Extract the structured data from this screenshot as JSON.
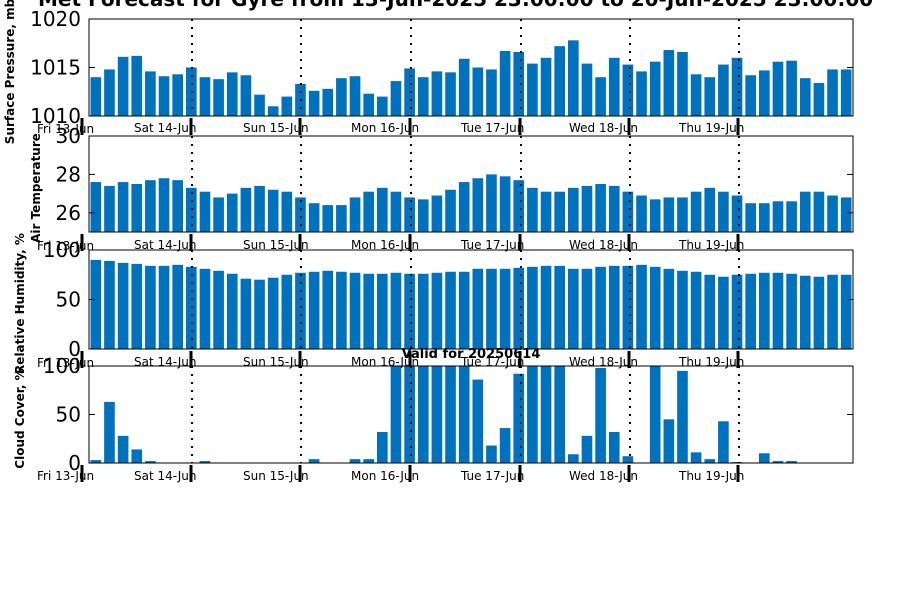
{
  "title": "Met Forecast for Gyre from 13-Jun-2025 23:00:00 to 20-Jun-2025 23:00:00",
  "subtitle": "Valid for 20250614",
  "colors": {
    "bar": "#0072bd",
    "axis": "#000000",
    "background": "#ffffff"
  },
  "chart_data": [
    {
      "type": "bar",
      "ylabel": "Surface Pressure, mb",
      "ylim": [
        1010,
        1020
      ],
      "yticks": [
        "1010",
        "1015",
        "1020"
      ],
      "xlabels": [
        "Fri 13-Jun",
        "Sat 14-Jun",
        "Sun 15-Jun",
        "Mon 16-Jun",
        "Tue 17-Jun",
        "Wed 18-Jun",
        "Thu 19-Jun"
      ],
      "grid": "dotted vertical at day boundaries",
      "values": [
        1014.0,
        1014.8,
        1016.1,
        1016.2,
        1014.6,
        1014.1,
        1014.3,
        1015.0,
        1014.0,
        1013.8,
        1014.5,
        1014.2,
        1012.2,
        1011.0,
        1012.0,
        1013.3,
        1012.6,
        1012.8,
        1013.9,
        1014.1,
        1012.3,
        1012.0,
        1013.6,
        1014.9,
        1014.0,
        1014.6,
        1014.5,
        1015.9,
        1015.0,
        1014.8,
        1016.7,
        1016.6,
        1015.4,
        1016.0,
        1017.2,
        1017.8,
        1015.4,
        1014.0,
        1016.0,
        1015.3,
        1014.6,
        1015.6,
        1016.8,
        1016.6,
        1014.3,
        1014.0,
        1015.3,
        1016.0,
        1014.2,
        1014.7,
        1015.6,
        1015.7,
        1013.9,
        1013.4,
        1014.8,
        1014.8
      ]
    },
    {
      "type": "bar",
      "ylabel": "Air Temperature",
      "ylim": [
        25,
        30
      ],
      "yticks": [
        "26",
        "28",
        "30"
      ],
      "ytickvalues": [
        26,
        28,
        30
      ],
      "xlabels": [
        "Fri 13-Jun",
        "Sat 14-Jun",
        "Sun 15-Jun",
        "Mon 16-Jun",
        "Tue 17-Jun",
        "Wed 18-Jun",
        "Thu 19-Jun"
      ],
      "grid": "dotted vertical at day boundaries",
      "values": [
        27.6,
        27.4,
        27.6,
        27.5,
        27.7,
        27.8,
        27.7,
        27.3,
        27.1,
        26.8,
        27.0,
        27.3,
        27.4,
        27.2,
        27.1,
        26.8,
        26.5,
        26.4,
        26.4,
        26.8,
        27.1,
        27.3,
        27.1,
        26.8,
        26.7,
        26.9,
        27.2,
        27.6,
        27.8,
        28.0,
        27.9,
        27.7,
        27.3,
        27.1,
        27.1,
        27.3,
        27.4,
        27.5,
        27.4,
        27.1,
        26.9,
        26.7,
        26.8,
        26.8,
        27.1,
        27.3,
        27.1,
        26.9,
        26.5,
        26.5,
        26.6,
        26.6,
        27.1,
        27.1,
        26.9,
        26.8
      ]
    },
    {
      "type": "bar",
      "ylabel": "Relative Humidity, %",
      "ylim": [
        0,
        100
      ],
      "yticks": [
        "0",
        "50",
        "100"
      ],
      "xlabels": [
        "Fri 13-Jun",
        "Sat 14-Jun",
        "Sun 15-Jun",
        "Mon 16-Jun",
        "Tue 17-Jun",
        "Wed 18-Jun",
        "Thu 19-Jun"
      ],
      "grid": "dotted vertical at day boundaries",
      "values": [
        90,
        89,
        87,
        86,
        84,
        84,
        85,
        83,
        81,
        79,
        76,
        71,
        70,
        72,
        75,
        77,
        78,
        79,
        78,
        77,
        76,
        76,
        77,
        76,
        76,
        77,
        78,
        78,
        81,
        81,
        81,
        82,
        83,
        84,
        84,
        81,
        81,
        83,
        84,
        84,
        85,
        83,
        81,
        79,
        78,
        75,
        73,
        75,
        76,
        77,
        77,
        76,
        74,
        73,
        75,
        75
      ]
    },
    {
      "type": "bar",
      "ylabel": "Cloud Cover, %",
      "ylim": [
        0,
        100
      ],
      "yticks": [
        "0",
        "50",
        "100"
      ],
      "xlabels": [
        "Fri 13-Jun",
        "Sat 14-Jun",
        "Sun 15-Jun",
        "Mon 16-Jun",
        "Tue 17-Jun",
        "Wed 18-Jun",
        "Thu 19-Jun"
      ],
      "grid": "dotted vertical at day boundaries",
      "values": [
        3,
        63,
        28,
        14,
        2,
        0,
        0,
        0,
        2,
        0,
        0,
        0,
        0,
        0,
        0,
        0,
        4,
        0,
        0,
        4,
        4,
        32,
        100,
        100,
        100,
        100,
        100,
        100,
        86,
        18,
        36,
        92,
        100,
        100,
        100,
        9,
        28,
        98,
        32,
        7,
        0,
        100,
        45,
        95,
        11,
        4,
        43,
        1,
        0,
        10,
        2,
        2,
        0,
        0,
        0,
        0
      ]
    }
  ]
}
